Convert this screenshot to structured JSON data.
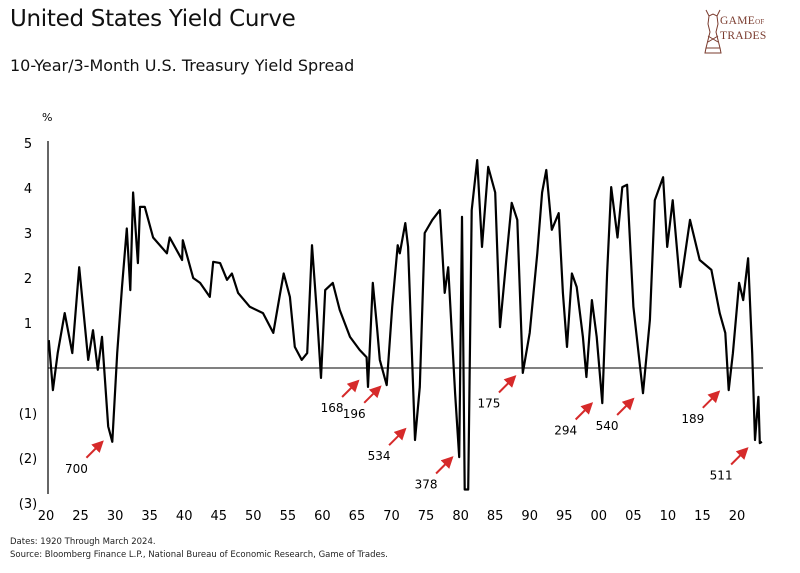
{
  "header": {
    "title": "United States Yield Curve",
    "subtitle": "10-Year/3-Month U.S. Treasury Yield Spread"
  },
  "logo": {
    "line1": "GAME",
    "line1_small": "OF",
    "line2": "TRADES",
    "color": "#7a3b2e"
  },
  "footer": {
    "dates": "Dates: 1920 Through March 2024.",
    "source": "Source: Bloomberg Finance L.P., National Bureau of Economic Research, Game of Trades."
  },
  "chart_data": {
    "type": "line",
    "title": "United States Yield Curve",
    "subtitle": "10-Year/3-Month U.S. Treasury Yield Spread",
    "ylabel": "%",
    "xlim": [
      1920,
      2024
    ],
    "ylim": [
      -3,
      5
    ],
    "grid": false,
    "legend": "none",
    "line_color": "#000000",
    "arrow_color": "#d62a2a",
    "yticks": [
      5,
      4,
      3,
      2,
      1,
      -1,
      -2,
      -3
    ],
    "ytick_labels": [
      "5",
      "4",
      "3",
      "2",
      "1",
      "(1)",
      "(2)",
      "(3)"
    ],
    "xticks": [
      1920,
      1925,
      1930,
      1935,
      1940,
      1945,
      1950,
      1955,
      1960,
      1965,
      1970,
      1975,
      1980,
      1985,
      1990,
      1995,
      2000,
      2005,
      2010,
      2015,
      2020
    ],
    "xtick_labels": [
      "20",
      "25",
      "30",
      "35",
      "40",
      "45",
      "50",
      "55",
      "60",
      "65",
      "70",
      "75",
      "80",
      "85",
      "90",
      "95",
      "00",
      "05",
      "10",
      "15",
      "20"
    ],
    "reference_line": 0,
    "series": [
      {
        "x": [
          1920.4,
          1921,
          1921.7,
          1922.7,
          1923.8,
          1924.8,
          1926.1,
          1926.8,
          1927.5,
          1928.1,
          1929,
          1929.6,
          1930.3,
          1931,
          1931.7,
          1932.2,
          1932.6,
          1933.3,
          1933.6,
          1934.3,
          1935.5,
          1937.5,
          1937.9,
          1939.7,
          1939.8,
          1941.3,
          1942.3,
          1943.7,
          1944.2,
          1945.2,
          1946.2,
          1946.9,
          1947.8,
          1949.5,
          1951.4,
          1952.9,
          1953.9,
          1954.4,
          1955.3,
          1956,
          1957,
          1957.8,
          1958.5,
          1959.2,
          1959.8,
          1960.4,
          1961.5,
          1962.5,
          1964,
          1965.4,
          1966.4,
          1966.6,
          1967.3,
          1967.9,
          1968.3,
          1969.3,
          1970.1,
          1970.9,
          1971.2,
          1972,
          1972.4,
          1973.4,
          1974.1,
          1974.8,
          1975.9,
          1977,
          1977.7,
          1978.2,
          1979.2,
          1979.8,
          1980.2,
          1980.6,
          1981.1,
          1981.6,
          1982.4,
          1983.1,
          1984,
          1985,
          1985.7,
          1986.7,
          1987.4,
          1988.2,
          1989,
          1990,
          1991.1,
          1991.8,
          1992.4,
          1993.2,
          1994.2,
          1994.8,
          1995.4,
          1996.1,
          1996.8,
          1997.7,
          1998.2,
          1999,
          1999.7,
          2000.5,
          2001.2,
          2001.8,
          2002.7,
          2003.4,
          2004.1,
          2005,
          2006.4,
          2007.4,
          2008.1,
          2009.3,
          2009.9,
          2010.7,
          2011.8,
          2013.2,
          2014.6,
          2016.3,
          2017.5,
          2018.3,
          2018.8,
          2019.4,
          2020.3,
          2020.9,
          2021.6,
          2022.2,
          2022.6,
          2023.1,
          2023.3,
          2023.6
        ],
        "y": [
          0.62,
          -0.49,
          0.33,
          1.22,
          0.33,
          2.24,
          0.18,
          0.84,
          -0.04,
          0.69,
          -1.3,
          -1.64,
          0.33,
          1.8,
          3.1,
          1.73,
          3.9,
          2.33,
          3.58,
          3.58,
          2.9,
          2.55,
          2.9,
          2.4,
          2.84,
          2.0,
          1.89,
          1.58,
          2.36,
          2.33,
          1.96,
          2.1,
          1.67,
          1.36,
          1.22,
          0.78,
          1.67,
          2.1,
          1.58,
          0.47,
          0.18,
          0.33,
          2.73,
          1.22,
          -0.22,
          1.73,
          1.89,
          1.29,
          0.69,
          0.4,
          0.24,
          -0.42,
          1.89,
          0.91,
          0.18,
          -0.38,
          1.36,
          2.73,
          2.55,
          3.22,
          2.69,
          -1.6,
          -0.42,
          3.0,
          3.29,
          3.51,
          1.67,
          2.24,
          -0.56,
          -1.98,
          3.36,
          -2.7,
          -2.7,
          3.51,
          4.62,
          2.69,
          4.47,
          3.9,
          0.91,
          2.55,
          3.67,
          3.29,
          -0.11,
          0.78,
          2.55,
          3.9,
          4.4,
          3.07,
          3.44,
          1.67,
          0.47,
          2.1,
          1.8,
          0.69,
          -0.2,
          1.51,
          0.69,
          -0.78,
          2.1,
          4.02,
          2.9,
          4.02,
          4.07,
          1.36,
          -0.56,
          1.07,
          3.73,
          4.24,
          2.69,
          3.73,
          1.8,
          3.29,
          2.4,
          2.18,
          1.22,
          0.78,
          -0.49,
          0.33,
          1.89,
          1.51,
          2.44,
          0.33,
          -1.6,
          -0.64,
          -1.67,
          -1.64
        ]
      }
    ],
    "annotations": [
      {
        "label": "700",
        "x": 1928.6,
        "y": -1.55
      },
      {
        "label": "168",
        "x": 1965.6,
        "y": -0.2
      },
      {
        "label": "196",
        "x": 1968.8,
        "y": -0.33
      },
      {
        "label": "534",
        "x": 1972.4,
        "y": -1.27
      },
      {
        "label": "378",
        "x": 1979.2,
        "y": -1.9
      },
      {
        "label": "175",
        "x": 1988.3,
        "y": -0.1
      },
      {
        "label": "294",
        "x": 1999.4,
        "y": -0.7
      },
      {
        "label": "540",
        "x": 2005.4,
        "y": -0.6
      },
      {
        "label": "189",
        "x": 2017.8,
        "y": -0.44
      },
      {
        "label": "511",
        "x": 2021.9,
        "y": -1.7
      }
    ]
  }
}
